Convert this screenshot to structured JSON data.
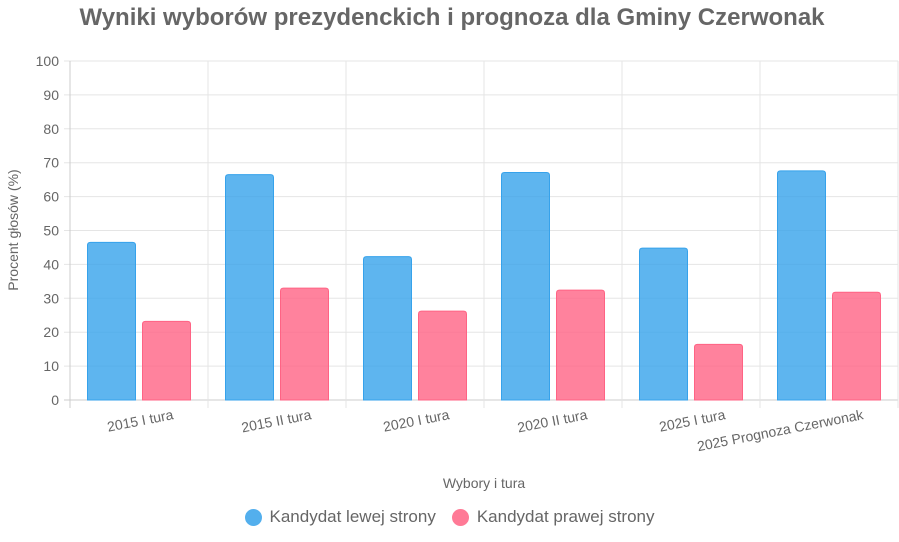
{
  "chart_data": {
    "type": "bar",
    "title": "Wyniki wyborów prezydenckich i prognoza dla Gminy Czerwonak",
    "xlabel": "Wybory i tura",
    "ylabel": "Procent głosów (%)",
    "ylim": [
      0,
      100
    ],
    "yticks": [
      "0",
      "10",
      "20",
      "30",
      "40",
      "50",
      "60",
      "70",
      "80",
      "90",
      "100"
    ],
    "categories": [
      "2015 I tura",
      "2015 II tura",
      "2020 I tura",
      "2020 II tura",
      "2025 I tura",
      "2025 Prognoza Czerwonak"
    ],
    "series": [
      {
        "name": "Kandydat lewej strony",
        "values": [
          46.5,
          66.5,
          42.3,
          67.1,
          44.8,
          67.6
        ],
        "color": "#36A2EB"
      },
      {
        "name": "Kandydat prawej strony",
        "values": [
          23.2,
          33.0,
          26.2,
          32.4,
          16.4,
          31.8
        ],
        "color": "#FF6384"
      }
    ],
    "grid": true,
    "legend_position": "bottom"
  }
}
